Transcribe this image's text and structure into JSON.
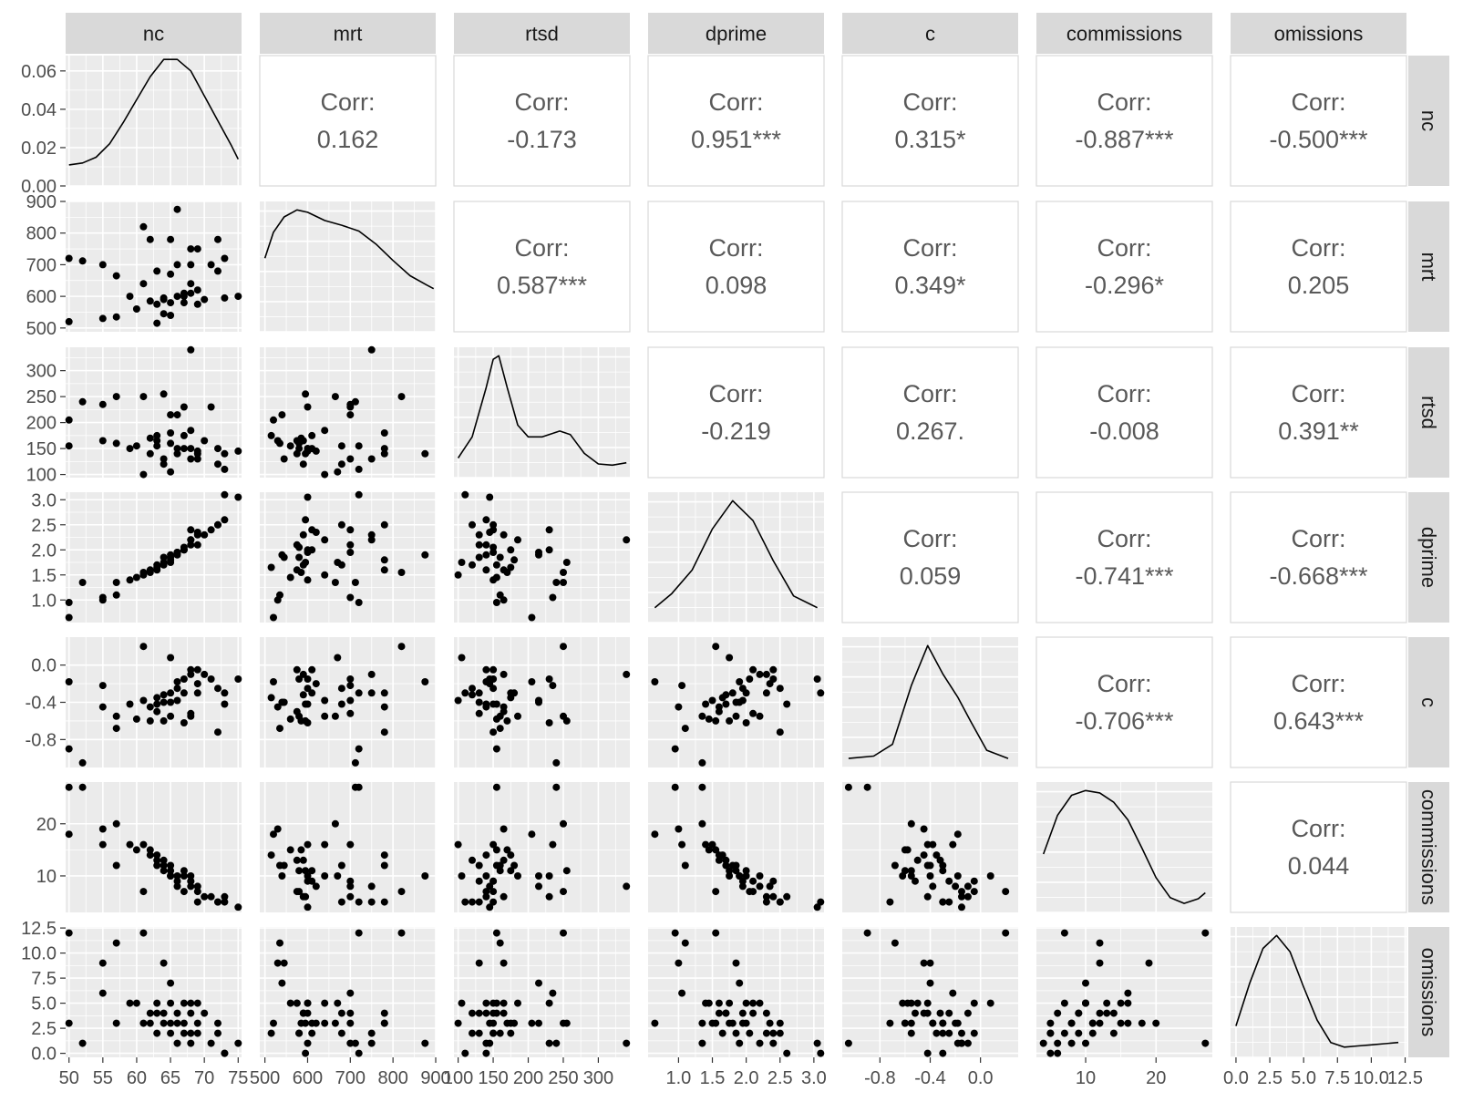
{
  "chart_data": {
    "type": "scatter",
    "variables": [
      "nc",
      "mrt",
      "rtsd",
      "dprime",
      "c",
      "commissions",
      "omissions"
    ],
    "corr_label": "Corr:",
    "correlations": [
      {
        "row": "nc",
        "col": "mrt",
        "value": "0.162"
      },
      {
        "row": "nc",
        "col": "rtsd",
        "value": "-0.173"
      },
      {
        "row": "nc",
        "col": "dprime",
        "value": "0.951***"
      },
      {
        "row": "nc",
        "col": "c",
        "value": "0.315*"
      },
      {
        "row": "nc",
        "col": "commissions",
        "value": "-0.887***"
      },
      {
        "row": "nc",
        "col": "omissions",
        "value": "-0.500***"
      },
      {
        "row": "mrt",
        "col": "rtsd",
        "value": "0.587***"
      },
      {
        "row": "mrt",
        "col": "dprime",
        "value": "0.098"
      },
      {
        "row": "mrt",
        "col": "c",
        "value": "0.349*"
      },
      {
        "row": "mrt",
        "col": "commissions",
        "value": "-0.296*"
      },
      {
        "row": "mrt",
        "col": "omissions",
        "value": "0.205"
      },
      {
        "row": "rtsd",
        "col": "dprime",
        "value": "-0.219"
      },
      {
        "row": "rtsd",
        "col": "c",
        "value": "0.267."
      },
      {
        "row": "rtsd",
        "col": "commissions",
        "value": "-0.008"
      },
      {
        "row": "rtsd",
        "col": "omissions",
        "value": "0.391**"
      },
      {
        "row": "dprime",
        "col": "c",
        "value": "0.059"
      },
      {
        "row": "dprime",
        "col": "commissions",
        "value": "-0.741***"
      },
      {
        "row": "dprime",
        "col": "omissions",
        "value": "-0.668***"
      },
      {
        "row": "c",
        "col": "commissions",
        "value": "-0.706***"
      },
      {
        "row": "c",
        "col": "omissions",
        "value": "0.643***"
      },
      {
        "row": "commissions",
        "col": "omissions",
        "value": "0.044"
      }
    ],
    "axes": {
      "nc": {
        "lim": [
          49.5,
          75.5
        ],
        "ticks": [
          50,
          55,
          60,
          65,
          70,
          75
        ],
        "tick_labels": [
          "50",
          "55",
          "60",
          "65",
          "70",
          "75"
        ]
      },
      "mrt": {
        "lim": [
          488,
          900
        ],
        "ticks": [
          500,
          600,
          700,
          800,
          900
        ],
        "tick_labels": [
          "500",
          "600",
          "700",
          "800",
          "900"
        ]
      },
      "rtsd": {
        "lim": [
          94,
          345
        ],
        "ticks": [
          100,
          150,
          200,
          250,
          300,
          350
        ],
        "tick_labels": [
          "100",
          "150",
          "200",
          "250",
          "300",
          "350"
        ]
      },
      "dprime": {
        "lim": [
          0.55,
          3.15
        ],
        "ticks": [
          1.0,
          1.5,
          2.0,
          2.5,
          3.0
        ],
        "tick_labels": [
          "1.0",
          "1.5",
          "2.0",
          "2.5",
          "3.0"
        ]
      },
      "c": {
        "lim": [
          -1.1,
          0.3
        ],
        "ticks": [
          -0.8,
          -0.4,
          0.0
        ],
        "tick_labels": [
          "-0.8",
          "-0.4",
          "0.0"
        ]
      },
      "commissions": {
        "lim": [
          3,
          28
        ],
        "ticks": [
          10,
          20
        ],
        "tick_labels": [
          "10",
          "20"
        ]
      },
      "omissions": {
        "lim": [
          -0.4,
          12.6
        ],
        "ticks": [
          0.0,
          2.5,
          5.0,
          7.5,
          10.0,
          12.5
        ],
        "tick_labels": [
          "0.0",
          "2.5",
          "5.0",
          "7.5",
          "10.0",
          "12.5"
        ]
      }
    },
    "density_ylim": [
      0,
      0.068
    ],
    "density_yticks": [
      0.0,
      0.02,
      0.04,
      0.06
    ],
    "density_ytick_labels": [
      "0.00",
      "0.02",
      "0.04",
      "0.06"
    ],
    "observations": {
      "nc": [
        50,
        50,
        52,
        55,
        55,
        57,
        57,
        59,
        60,
        61,
        61,
        62,
        62,
        63,
        63,
        63,
        64,
        64,
        64,
        65,
        65,
        65,
        65,
        66,
        66,
        66,
        67,
        67,
        67,
        68,
        68,
        68,
        68,
        69,
        69,
        69,
        70,
        71,
        72,
        72,
        73,
        73,
        75
      ],
      "mrt": [
        720,
        520,
        712,
        530,
        700,
        535,
        665,
        600,
        560,
        640,
        820,
        585,
        780,
        575,
        680,
        515,
        595,
        590,
        545,
        780,
        540,
        670,
        580,
        600,
        700,
        875,
        600,
        610,
        580,
        700,
        640,
        750,
        610,
        575,
        620,
        750,
        590,
        700,
        780,
        680,
        595,
        720,
        600
      ],
      "rtsd": [
        155,
        205,
        240,
        165,
        235,
        160,
        250,
        150,
        155,
        100,
        250,
        170,
        140,
        165,
        155,
        175,
        255,
        120,
        130,
        180,
        215,
        105,
        160,
        150,
        215,
        140,
        230,
        175,
        150,
        130,
        185,
        340,
        150,
        140,
        145,
        130,
        165,
        230,
        150,
        120,
        140,
        110,
        145
      ],
      "dprime": [
        0.95,
        0.65,
        1.35,
        1.0,
        1.05,
        1.1,
        1.35,
        1.4,
        1.45,
        1.5,
        1.55,
        1.55,
        1.6,
        1.6,
        1.7,
        1.65,
        1.75,
        1.7,
        1.85,
        1.8,
        1.9,
        1.75,
        1.85,
        1.95,
        1.95,
        1.9,
        2.0,
        2.0,
        2.05,
        2.1,
        2.2,
        2.2,
        2.4,
        2.1,
        2.35,
        2.3,
        2.3,
        2.4,
        2.5,
        2.5,
        2.6,
        3.1,
        3.05
      ],
      "c": [
        -0.9,
        -0.18,
        -1.05,
        -0.45,
        -0.22,
        -0.68,
        -0.55,
        -0.42,
        -0.58,
        -0.38,
        0.2,
        -0.6,
        -0.45,
        -0.5,
        -0.42,
        -0.35,
        -0.6,
        -0.32,
        -0.4,
        -0.3,
        -0.4,
        0.08,
        -0.55,
        -0.25,
        -0.38,
        -0.18,
        -0.62,
        -0.3,
        -0.15,
        -0.52,
        -0.55,
        -0.1,
        -0.05,
        -0.05,
        -0.2,
        -0.3,
        -0.1,
        -0.15,
        -0.72,
        -0.25,
        -0.42,
        -0.3,
        -0.15
      ],
      "commissions": [
        27,
        18,
        27,
        19,
        16,
        12,
        20,
        16,
        15,
        16,
        7,
        15,
        14,
        13,
        12,
        14,
        11,
        13,
        12,
        12,
        10,
        10,
        11,
        9,
        8,
        10,
        10,
        11,
        7,
        9,
        10,
        8,
        9,
        7,
        8,
        5,
        6,
        6,
        5,
        5,
        6,
        5,
        4
      ],
      "omissions": [
        12,
        3,
        1,
        9,
        6,
        11,
        3,
        5,
        5,
        3,
        12,
        3,
        4,
        5,
        4,
        2,
        3,
        4,
        9,
        3,
        7,
        5,
        2,
        4,
        3,
        1,
        5,
        3,
        2,
        4,
        5,
        1,
        2,
        5,
        3,
        2,
        4,
        1,
        3,
        2,
        0,
        0,
        1
      ]
    },
    "densities": {
      "nc": [
        [
          50,
          0.011
        ],
        [
          52,
          0.012
        ],
        [
          54,
          0.015
        ],
        [
          56,
          0.022
        ],
        [
          58,
          0.033
        ],
        [
          60,
          0.045
        ],
        [
          62,
          0.057
        ],
        [
          64,
          0.066
        ],
        [
          66,
          0.066
        ],
        [
          68,
          0.06
        ],
        [
          70,
          0.047
        ],
        [
          72,
          0.034
        ],
        [
          74,
          0.021
        ],
        [
          75,
          0.014
        ]
      ],
      "mrt": [
        [
          500,
          0.58
        ],
        [
          520,
          0.8
        ],
        [
          545,
          0.93
        ],
        [
          575,
          0.99
        ],
        [
          600,
          0.97
        ],
        [
          640,
          0.9
        ],
        [
          680,
          0.86
        ],
        [
          720,
          0.81
        ],
        [
          760,
          0.7
        ],
        [
          800,
          0.56
        ],
        [
          840,
          0.43
        ],
        [
          880,
          0.35
        ],
        [
          895,
          0.32
        ]
      ],
      "rtsd": [
        [
          100,
          0.12
        ],
        [
          120,
          0.3
        ],
        [
          140,
          0.72
        ],
        [
          150,
          0.96
        ],
        [
          158,
          0.99
        ],
        [
          170,
          0.72
        ],
        [
          185,
          0.4
        ],
        [
          200,
          0.3
        ],
        [
          220,
          0.3
        ],
        [
          245,
          0.35
        ],
        [
          260,
          0.32
        ],
        [
          280,
          0.16
        ],
        [
          300,
          0.07
        ],
        [
          320,
          0.06
        ],
        [
          340,
          0.08
        ]
      ],
      "dprime": [
        [
          0.65,
          0.08
        ],
        [
          0.9,
          0.2
        ],
        [
          1.2,
          0.4
        ],
        [
          1.5,
          0.75
        ],
        [
          1.8,
          0.99
        ],
        [
          2.1,
          0.82
        ],
        [
          2.4,
          0.48
        ],
        [
          2.7,
          0.18
        ],
        [
          3.05,
          0.08
        ]
      ],
      "c": [
        [
          -1.05,
          0.03
        ],
        [
          -0.85,
          0.05
        ],
        [
          -0.7,
          0.15
        ],
        [
          -0.55,
          0.65
        ],
        [
          -0.42,
          0.99
        ],
        [
          -0.3,
          0.75
        ],
        [
          -0.18,
          0.55
        ],
        [
          -0.08,
          0.35
        ],
        [
          0.05,
          0.1
        ],
        [
          0.22,
          0.03
        ]
      ],
      "commissions": [
        [
          4,
          0.45
        ],
        [
          6,
          0.78
        ],
        [
          8,
          0.95
        ],
        [
          10,
          0.99
        ],
        [
          12,
          0.97
        ],
        [
          14,
          0.89
        ],
        [
          16,
          0.74
        ],
        [
          18,
          0.5
        ],
        [
          20,
          0.25
        ],
        [
          22,
          0.08
        ],
        [
          24,
          0.03
        ],
        [
          26,
          0.07
        ],
        [
          27,
          0.12
        ]
      ],
      "omissions": [
        [
          0,
          0.22
        ],
        [
          1,
          0.58
        ],
        [
          2,
          0.88
        ],
        [
          3,
          0.99
        ],
        [
          4,
          0.85
        ],
        [
          5,
          0.55
        ],
        [
          6,
          0.27
        ],
        [
          7,
          0.08
        ],
        [
          8,
          0.04
        ],
        [
          9,
          0.05
        ],
        [
          10,
          0.06
        ],
        [
          11,
          0.07
        ],
        [
          12,
          0.08
        ]
      ]
    }
  }
}
